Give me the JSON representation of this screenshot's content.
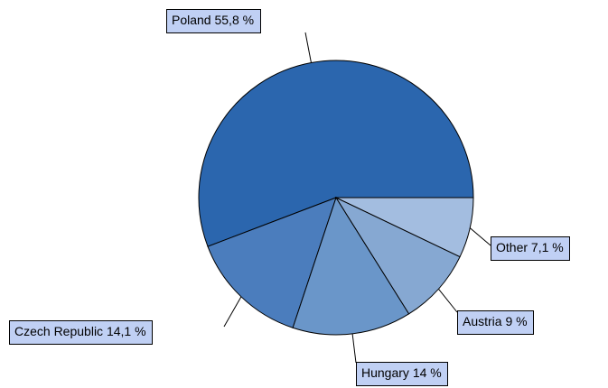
{
  "chart_data": {
    "type": "pie",
    "categories": [
      "Poland",
      "Czech Republic",
      "Hungary",
      "Austria",
      "Other"
    ],
    "values": [
      55.8,
      14.1,
      14,
      9,
      7.1
    ],
    "value_labels": [
      "55,8 %",
      "14,1 %",
      "14 %",
      "9 %",
      "7,1 %"
    ],
    "colors": [
      "#2b66ae",
      "#4b7dbd",
      "#6a96c9",
      "#86a8d2",
      "#a3bde0"
    ]
  }
}
